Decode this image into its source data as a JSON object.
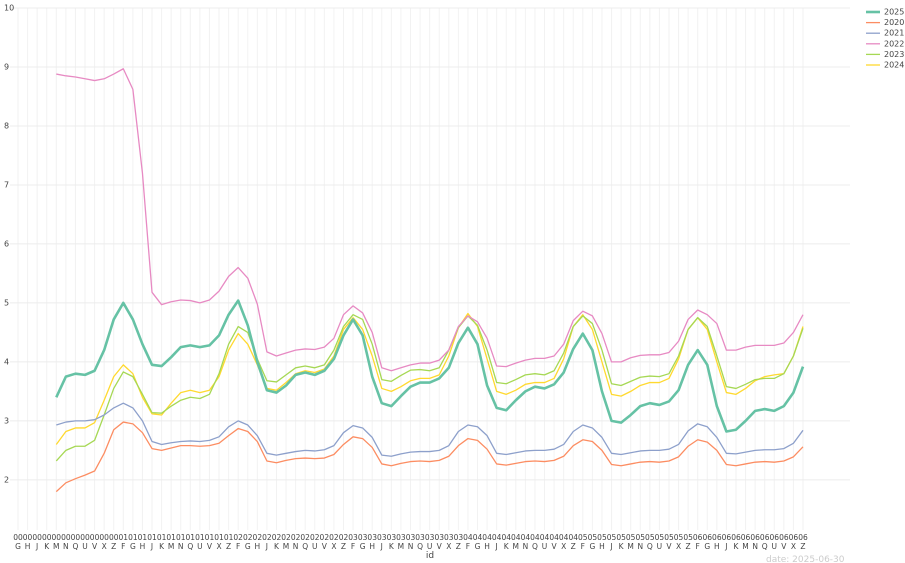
{
  "chart_data": {
    "type": "line",
    "x_label": "id",
    "annotation": "date: 2025-06-30",
    "categories": [
      "00\nG",
      "00\nH",
      "00\nJ",
      "00\nK",
      "00\nM",
      "00\nN",
      "00\nQ",
      "00\nU",
      "00\nV",
      "00\nX",
      "00\nZ",
      "01\nF",
      "01\nG",
      "01\nH",
      "01\nJ",
      "01\nK",
      "01\nM",
      "01\nN",
      "01\nQ",
      "01\nU",
      "01\nV",
      "01\nX",
      "01\nZ",
      "02\nF",
      "02\nG",
      "02\nH",
      "02\nJ",
      "02\nK",
      "02\nM",
      "02\nN",
      "02\nQ",
      "02\nU",
      "02\nV",
      "02\nX",
      "02\nZ",
      "03\nF",
      "03\nG",
      "03\nH",
      "03\nJ",
      "03\nK",
      "03\nM",
      "03\nN",
      "03\nQ",
      "03\nU",
      "03\nV",
      "03\nX",
      "03\nZ",
      "04\nF",
      "04\nG",
      "04\nH",
      "04\nJ",
      "04\nK",
      "04\nM",
      "04\nN",
      "04\nQ",
      "04\nU",
      "04\nV",
      "04\nX",
      "04\nZ",
      "05\nF",
      "05\nG",
      "05\nH",
      "05\nJ",
      "05\nK",
      "05\nM",
      "05\nN",
      "05\nQ",
      "05\nU",
      "05\nV",
      "05\nX",
      "05\nZ",
      "06\nF",
      "06\nG",
      "06\nH",
      "06\nJ",
      "06\nK",
      "06\nM",
      "06\nN",
      "06\nQ",
      "06\nU",
      "06\nV",
      "06\nX",
      "06\nZ"
    ],
    "ylim": [
      1.15,
      10
    ],
    "yticks": [
      2,
      3,
      4,
      5,
      6,
      7,
      8,
      9,
      10
    ],
    "grid": true,
    "legend": "top-right",
    "series": [
      {
        "name": "2025",
        "color": "#66c2a5",
        "width": 2.6,
        "values": [
          null,
          null,
          null,
          null,
          3.4,
          3.75,
          3.8,
          3.78,
          3.85,
          4.2,
          4.72,
          5.0,
          4.72,
          4.3,
          3.95,
          3.93,
          4.08,
          4.25,
          4.28,
          4.25,
          4.28,
          4.45,
          4.8,
          5.04,
          4.62,
          4.0,
          3.52,
          3.48,
          3.6,
          3.78,
          3.82,
          3.78,
          3.85,
          4.05,
          4.45,
          4.72,
          4.45,
          3.75,
          3.3,
          3.25,
          3.42,
          3.58,
          3.65,
          3.65,
          3.72,
          3.9,
          4.32,
          4.58,
          4.3,
          3.6,
          3.22,
          3.18,
          3.35,
          3.5,
          3.58,
          3.55,
          3.62,
          3.82,
          4.22,
          4.48,
          4.2,
          3.5,
          3.0,
          2.97,
          3.1,
          3.25,
          3.3,
          3.27,
          3.33,
          3.52,
          3.95,
          4.2,
          3.95,
          3.25,
          2.82,
          2.85,
          3.0,
          3.17,
          3.2,
          3.17,
          3.25,
          3.48,
          3.92
        ]
      },
      {
        "name": "2020",
        "color": "#fc8d62",
        "width": 1.3,
        "values": [
          null,
          null,
          null,
          null,
          1.8,
          1.95,
          2.02,
          2.08,
          2.15,
          2.45,
          2.85,
          2.98,
          2.95,
          2.8,
          2.53,
          2.5,
          2.54,
          2.58,
          2.58,
          2.57,
          2.58,
          2.62,
          2.75,
          2.87,
          2.82,
          2.65,
          2.32,
          2.29,
          2.33,
          2.36,
          2.37,
          2.36,
          2.37,
          2.43,
          2.6,
          2.73,
          2.7,
          2.55,
          2.27,
          2.24,
          2.28,
          2.31,
          2.32,
          2.31,
          2.33,
          2.4,
          2.58,
          2.7,
          2.67,
          2.52,
          2.27,
          2.25,
          2.28,
          2.31,
          2.32,
          2.31,
          2.33,
          2.4,
          2.58,
          2.68,
          2.65,
          2.5,
          2.26,
          2.24,
          2.27,
          2.3,
          2.31,
          2.3,
          2.32,
          2.39,
          2.57,
          2.68,
          2.64,
          2.5,
          2.26,
          2.24,
          2.27,
          2.3,
          2.31,
          2.3,
          2.32,
          2.39,
          2.56
        ]
      },
      {
        "name": "2021",
        "color": "#8da0cb",
        "width": 1.3,
        "values": [
          null,
          null,
          null,
          null,
          2.93,
          2.98,
          3.0,
          3.0,
          3.02,
          3.1,
          3.22,
          3.3,
          3.22,
          3.0,
          2.65,
          2.6,
          2.63,
          2.65,
          2.66,
          2.65,
          2.67,
          2.73,
          2.9,
          3.0,
          2.93,
          2.75,
          2.45,
          2.42,
          2.45,
          2.48,
          2.5,
          2.49,
          2.51,
          2.58,
          2.8,
          2.92,
          2.88,
          2.72,
          2.42,
          2.4,
          2.44,
          2.47,
          2.48,
          2.48,
          2.5,
          2.58,
          2.82,
          2.93,
          2.9,
          2.75,
          2.45,
          2.43,
          2.46,
          2.49,
          2.5,
          2.5,
          2.52,
          2.6,
          2.82,
          2.93,
          2.88,
          2.72,
          2.45,
          2.43,
          2.46,
          2.49,
          2.5,
          2.5,
          2.52,
          2.6,
          2.83,
          2.95,
          2.9,
          2.72,
          2.45,
          2.44,
          2.47,
          2.5,
          2.51,
          2.51,
          2.53,
          2.62,
          2.84
        ]
      },
      {
        "name": "2022",
        "color": "#e78ac3",
        "width": 1.3,
        "values": [
          null,
          null,
          null,
          null,
          8.88,
          8.85,
          8.83,
          8.8,
          8.77,
          8.8,
          8.88,
          8.97,
          8.62,
          7.2,
          5.18,
          4.97,
          5.02,
          5.05,
          5.04,
          5.0,
          5.05,
          5.2,
          5.45,
          5.6,
          5.42,
          4.98,
          4.17,
          4.1,
          4.15,
          4.2,
          4.22,
          4.21,
          4.25,
          4.4,
          4.8,
          4.95,
          4.83,
          4.5,
          3.9,
          3.85,
          3.9,
          3.95,
          3.98,
          3.98,
          4.03,
          4.2,
          4.6,
          4.78,
          4.68,
          4.4,
          3.93,
          3.92,
          3.98,
          4.03,
          4.06,
          4.06,
          4.1,
          4.3,
          4.7,
          4.86,
          4.78,
          4.48,
          4.0,
          4.0,
          4.07,
          4.11,
          4.12,
          4.12,
          4.16,
          4.35,
          4.72,
          4.88,
          4.8,
          4.65,
          4.2,
          4.2,
          4.25,
          4.28,
          4.28,
          4.28,
          4.32,
          4.5,
          4.8
        ]
      },
      {
        "name": "2023",
        "color": "#a6d854",
        "width": 1.3,
        "values": [
          null,
          null,
          null,
          null,
          2.32,
          2.5,
          2.57,
          2.57,
          2.67,
          3.1,
          3.55,
          3.83,
          3.75,
          3.45,
          3.14,
          3.13,
          3.25,
          3.35,
          3.4,
          3.38,
          3.45,
          3.8,
          4.3,
          4.6,
          4.5,
          4.05,
          3.68,
          3.66,
          3.78,
          3.9,
          3.93,
          3.9,
          3.95,
          4.2,
          4.6,
          4.8,
          4.72,
          4.3,
          3.7,
          3.67,
          3.77,
          3.86,
          3.87,
          3.85,
          3.9,
          4.2,
          4.58,
          4.78,
          4.62,
          4.2,
          3.65,
          3.63,
          3.7,
          3.78,
          3.8,
          3.78,
          3.85,
          4.15,
          4.6,
          4.78,
          4.65,
          4.2,
          3.63,
          3.6,
          3.67,
          3.74,
          3.76,
          3.75,
          3.8,
          4.1,
          4.55,
          4.75,
          4.6,
          4.1,
          3.58,
          3.55,
          3.62,
          3.7,
          3.72,
          3.72,
          3.8,
          4.1,
          4.57
        ]
      },
      {
        "name": "2024",
        "color": "#ffd92f",
        "width": 1.3,
        "values": [
          null,
          null,
          null,
          null,
          2.6,
          2.82,
          2.88,
          2.88,
          2.97,
          3.35,
          3.75,
          3.95,
          3.8,
          3.4,
          3.12,
          3.1,
          3.3,
          3.48,
          3.52,
          3.48,
          3.52,
          3.75,
          4.2,
          4.48,
          4.3,
          3.95,
          3.55,
          3.52,
          3.65,
          3.8,
          3.85,
          3.82,
          3.88,
          4.1,
          4.55,
          4.75,
          4.55,
          4.1,
          3.55,
          3.5,
          3.58,
          3.68,
          3.72,
          3.72,
          3.78,
          4.1,
          4.58,
          4.82,
          4.6,
          4.05,
          3.5,
          3.45,
          3.52,
          3.62,
          3.65,
          3.65,
          3.72,
          4.05,
          4.6,
          4.8,
          4.55,
          4.0,
          3.45,
          3.42,
          3.5,
          3.6,
          3.65,
          3.65,
          3.72,
          4.05,
          4.55,
          4.75,
          4.55,
          4.0,
          3.48,
          3.45,
          3.55,
          3.68,
          3.75,
          3.78,
          3.8,
          4.1,
          4.6
        ]
      }
    ]
  }
}
